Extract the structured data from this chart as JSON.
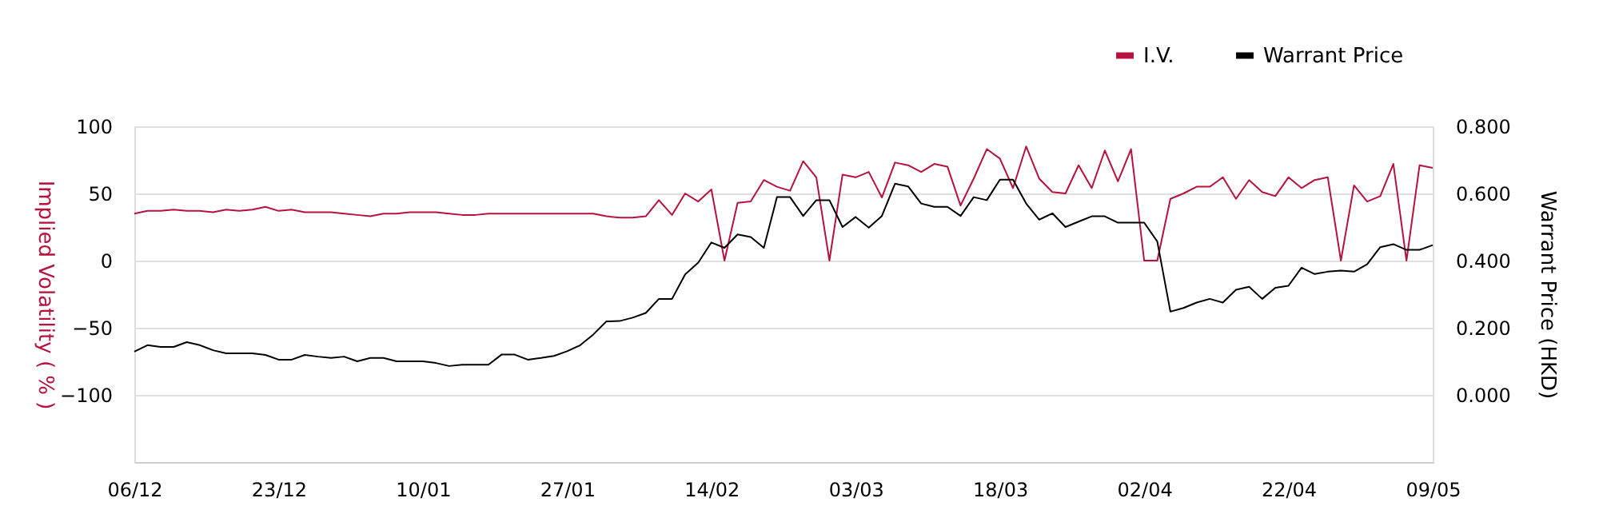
{
  "chart_data": {
    "type": "line",
    "categories": [
      "06/12",
      null,
      null,
      null,
      null,
      null,
      null,
      null,
      null,
      null,
      null,
      "23/12",
      null,
      null,
      null,
      null,
      null,
      null,
      null,
      null,
      null,
      null,
      "10/01",
      null,
      null,
      null,
      null,
      null,
      null,
      null,
      null,
      null,
      null,
      "27/01",
      null,
      null,
      null,
      null,
      null,
      null,
      null,
      null,
      null,
      null,
      "14/02",
      null,
      null,
      null,
      null,
      null,
      null,
      null,
      null,
      null,
      null,
      "03/03",
      null,
      null,
      null,
      null,
      null,
      null,
      null,
      null,
      null,
      null,
      "18/03",
      null,
      null,
      null,
      null,
      null,
      null,
      null,
      null,
      null,
      null,
      "02/04",
      null,
      null,
      null,
      null,
      null,
      null,
      null,
      null,
      null,
      null,
      "22/04",
      null,
      null,
      null,
      null,
      null,
      null,
      null,
      null,
      null,
      null,
      "09/05"
    ],
    "series": [
      {
        "name": "I.V.",
        "color": "#b5123e",
        "values": [
          35,
          37,
          37,
          38,
          37,
          37,
          36,
          38,
          37,
          38,
          40,
          37,
          38,
          36,
          36,
          36,
          35,
          34,
          33,
          35,
          35,
          36,
          36,
          36,
          35,
          34,
          34,
          35,
          35,
          35,
          35,
          35,
          35,
          35,
          35,
          35,
          33,
          32,
          32,
          33,
          45,
          34,
          50,
          44,
          53,
          0,
          43,
          44,
          60,
          55,
          52,
          74,
          62,
          0,
          64,
          62,
          66,
          47,
          73,
          71,
          66,
          72,
          70,
          41,
          61,
          83,
          76,
          54,
          85,
          61,
          51,
          50,
          71,
          54,
          82,
          59,
          83,
          0,
          0,
          46,
          50,
          55,
          55,
          62,
          46,
          60,
          51,
          48,
          62,
          54,
          60,
          62,
          0,
          56,
          44,
          48,
          72,
          0,
          71,
          69
        ]
      },
      {
        "name": "Warrant Price",
        "color": "#000000",
        "axis": "y2",
        "values": [
          0.129,
          0.148,
          0.143,
          0.143,
          0.157,
          0.148,
          0.133,
          0.124,
          0.124,
          0.124,
          0.119,
          0.105,
          0.105,
          0.119,
          0.114,
          0.11,
          0.114,
          0.1,
          0.11,
          0.11,
          0.1,
          0.1,
          0.1,
          0.095,
          0.086,
          0.09,
          0.09,
          0.09,
          0.12,
          0.12,
          0.105,
          0.11,
          0.116,
          0.13,
          0.148,
          0.18,
          0.219,
          0.22,
          0.23,
          0.244,
          0.286,
          0.286,
          0.359,
          0.394,
          0.454,
          0.438,
          0.478,
          0.47,
          0.438,
          0.589,
          0.589,
          0.533,
          0.58,
          0.58,
          0.5,
          0.53,
          0.498,
          0.533,
          0.629,
          0.621,
          0.57,
          0.56,
          0.56,
          0.533,
          0.589,
          0.58,
          0.641,
          0.641,
          0.57,
          0.522,
          0.541,
          0.5,
          0.516,
          0.532,
          0.532,
          0.513,
          0.513,
          0.513,
          0.457,
          0.248,
          0.259,
          0.275,
          0.286,
          0.275,
          0.313,
          0.322,
          0.286,
          0.319,
          0.325,
          0.379,
          0.36,
          0.367,
          0.37,
          0.367,
          0.389,
          0.44,
          0.449,
          0.432,
          0.432,
          0.446
        ]
      }
    ],
    "ylabel": "Implied Volatility ( % )",
    "y2label": "Warrant Price (HKD)",
    "ylim": [
      -150,
      100
    ],
    "yticks": [
      -100,
      -50,
      0,
      50,
      100
    ],
    "y2lim": [
      -0.2,
      0.8
    ],
    "y2ticks": [
      {
        "value": 0,
        "label": "0.000"
      },
      {
        "value": 0.2,
        "label": "0.200"
      },
      {
        "value": 0.4,
        "label": "0.400"
      },
      {
        "value": 0.6,
        "label": "0.600"
      },
      {
        "value": 0.8,
        "label": "0.800"
      }
    ],
    "grid": "y",
    "legend": "top right",
    "marker": "none",
    "line_style": "solid"
  }
}
